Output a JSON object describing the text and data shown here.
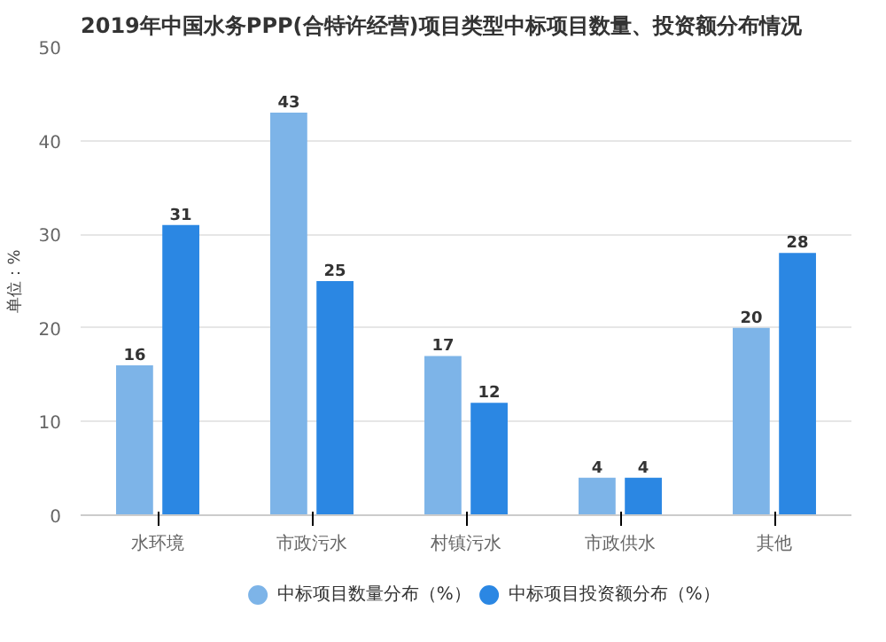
{
  "chart_data": {
    "type": "bar",
    "title": "2019年中国水务PPP(合特许经营)项目类型中标项目数量、投资额分布情况",
    "ylabel": "单位：%",
    "categories": [
      "水环境",
      "市政污水",
      "村镇污水",
      "市政供水",
      "其他"
    ],
    "series": [
      {
        "name": "中标项目数量分布（%）",
        "color": "#7db4e8",
        "values": [
          16,
          43,
          17,
          4,
          20
        ]
      },
      {
        "name": "中标项目投资额分布（%）",
        "color": "#2b87e3",
        "values": [
          31,
          25,
          12,
          4,
          28
        ]
      }
    ],
    "ylim": [
      0,
      50
    ],
    "yticks": [
      0,
      10,
      20,
      30,
      40,
      50
    ],
    "grid": "y",
    "legend": "bottom",
    "data_labels": true
  }
}
